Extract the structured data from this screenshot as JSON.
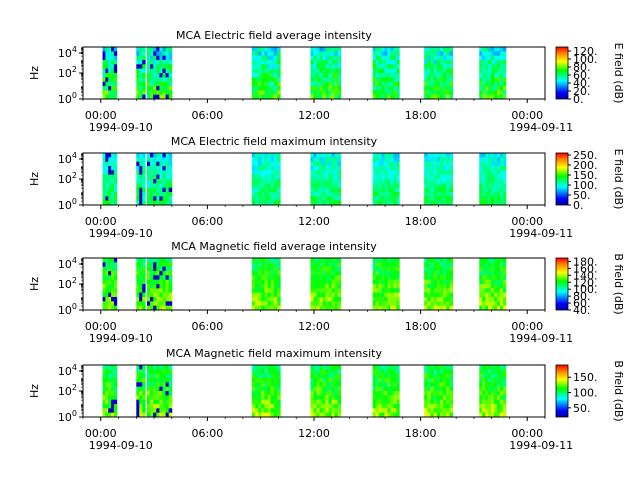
{
  "chart_data": [
    {
      "type": "heatmap",
      "title": "MCA  Electric field average intensity",
      "ylabel": "Hz",
      "colorbar_label": "E field (dB)",
      "colorbar_ticks": [
        "0.",
        "20.",
        "40.",
        "60.",
        "80.",
        "100.",
        "120."
      ],
      "colorbar_range": [
        0,
        130
      ],
      "x_tick_labels": [
        "00:00",
        "06:00",
        "12:00",
        "18:00",
        "00:00"
      ],
      "x_date_labels": [
        "1994-09-10",
        "1994-09-11"
      ],
      "y_tick_labels": [
        "10^0",
        "10^2",
        "10^4"
      ],
      "yscale": "log",
      "data_intervals_hours": [
        [
          0.1,
          0.9
        ],
        [
          2.0,
          2.5
        ],
        [
          2.6,
          4.0
        ],
        [
          8.5,
          10.1
        ],
        [
          11.8,
          13.5
        ],
        [
          15.3,
          16.8
        ],
        [
          18.2,
          19.8
        ],
        [
          21.3,
          22.8
        ]
      ],
      "level": 60,
      "variation": 30
    },
    {
      "type": "heatmap",
      "title": "MCA  Electric field maximum intensity",
      "ylabel": "Hz",
      "colorbar_label": "E field (dB)",
      "colorbar_ticks": [
        "0.",
        "50.",
        "100.",
        "150.",
        "200.",
        "250."
      ],
      "colorbar_range": [
        0,
        260
      ],
      "x_tick_labels": [
        "00:00",
        "06:00",
        "12:00",
        "18:00",
        "00:00"
      ],
      "x_date_labels": [
        "1994-09-10",
        "1994-09-11"
      ],
      "y_tick_labels": [
        "10^0",
        "10^2",
        "10^4"
      ],
      "yscale": "log",
      "data_intervals_hours": [
        [
          0.1,
          0.9
        ],
        [
          2.0,
          2.5
        ],
        [
          2.6,
          4.0
        ],
        [
          8.5,
          10.1
        ],
        [
          11.8,
          13.5
        ],
        [
          15.3,
          16.8
        ],
        [
          18.2,
          19.8
        ],
        [
          21.3,
          22.8
        ]
      ],
      "level": 110,
      "variation": 40
    },
    {
      "type": "heatmap",
      "title": "MCA  Magnetic field average intensity",
      "ylabel": "Hz",
      "colorbar_label": "B field (dB)",
      "colorbar_ticks": [
        "40.",
        "60.",
        "80.",
        "100.",
        "120.",
        "140.",
        "160.",
        "180."
      ],
      "colorbar_range": [
        40,
        190
      ],
      "x_tick_labels": [
        "00:00",
        "06:00",
        "12:00",
        "18:00",
        "00:00"
      ],
      "x_date_labels": [
        "1994-09-10",
        "1994-09-11"
      ],
      "y_tick_labels": [
        "10^0",
        "10^2",
        "10^4"
      ],
      "yscale": "log",
      "data_intervals_hours": [
        [
          0.1,
          0.9
        ],
        [
          2.0,
          2.5
        ],
        [
          2.6,
          4.0
        ],
        [
          8.5,
          10.1
        ],
        [
          11.8,
          13.5
        ],
        [
          15.3,
          16.8
        ],
        [
          18.2,
          19.8
        ],
        [
          21.3,
          22.8
        ]
      ],
      "level": 125,
      "variation": 25
    },
    {
      "type": "heatmap",
      "title": "MCA  Magnetic field maximum intensity",
      "ylabel": "Hz",
      "colorbar_label": "B field (dB)",
      "colorbar_ticks": [
        "50.",
        "100.",
        "150."
      ],
      "colorbar_range": [
        20,
        190
      ],
      "x_tick_labels": [
        "00:00",
        "06:00",
        "12:00",
        "18:00",
        "00:00"
      ],
      "x_date_labels": [
        "1994-09-10",
        "1994-09-11"
      ],
      "y_tick_labels": [
        "10^0",
        "10^2",
        "10^4"
      ],
      "yscale": "log",
      "data_intervals_hours": [
        [
          0.1,
          0.9
        ],
        [
          2.0,
          2.5
        ],
        [
          2.6,
          4.0
        ],
        [
          8.5,
          10.1
        ],
        [
          11.8,
          13.5
        ],
        [
          15.3,
          16.8
        ],
        [
          18.2,
          19.8
        ],
        [
          21.3,
          22.8
        ]
      ],
      "level": 115,
      "variation": 30
    }
  ]
}
